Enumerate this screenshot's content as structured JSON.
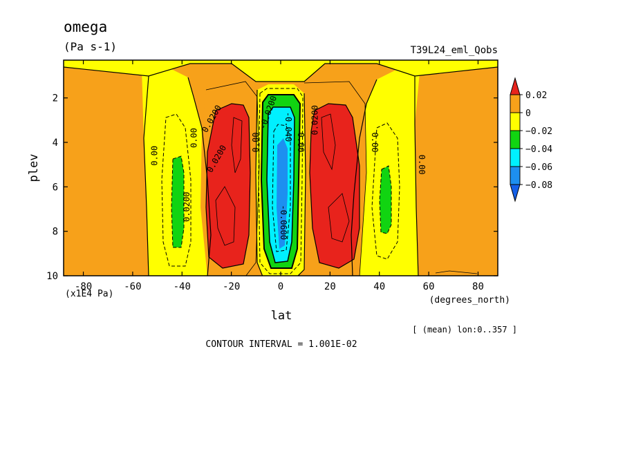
{
  "chart_data": {
    "type": "heatmap",
    "title": "omega",
    "units": "(Pa s-1)",
    "dataset": "T39L24_eml_Qobs",
    "xlabel": "lat",
    "xunits": "(degrees_north)",
    "ylabel": "plev",
    "yunits": "(x1E4 Pa)",
    "xlim": [
      -88,
      88
    ],
    "ylim": [
      10,
      0.3
    ],
    "x_ticks": [
      -80,
      -60,
      -40,
      -20,
      0,
      20,
      40,
      60,
      80
    ],
    "x_tick_labels": [
      "-80",
      "-60",
      "-40",
      "-20",
      "0",
      "20",
      "40",
      "60",
      "80"
    ],
    "y_ticks": [
      2,
      4,
      6,
      8,
      10
    ],
    "y_tick_labels": [
      "2",
      "4",
      "6",
      "8",
      "10"
    ],
    "levels": [
      0.02,
      0,
      -0.02,
      -0.04,
      -0.06,
      -0.08
    ],
    "colorbar": [
      {
        "label": "0.02",
        "color": "#e8231c"
      },
      {
        "label": "0",
        "color": "#f7a11a"
      },
      {
        "label": "−0.02",
        "color": "#ffff00"
      },
      {
        "label": "−0.04",
        "color": "#11d411"
      },
      {
        "label": "−0.06",
        "color": "#00f0ff"
      },
      {
        "label": "−0.08",
        "color": "#1d8ff0"
      }
    ],
    "below_color": "#1560e8",
    "contour_labels": [
      {
        "text": "0.00",
        "x": -50,
        "y": 4.6,
        "rot": -90
      },
      {
        "text": "0.00",
        "x": -34,
        "y": 3.8,
        "rot": -90
      },
      {
        "text": "0.0200",
        "x": -37,
        "y": 6.9,
        "rot": -90
      },
      {
        "text": "0.0200",
        "x": -27,
        "y": 3.0,
        "rot": -60
      },
      {
        "text": "0.0200",
        "x": -25,
        "y": 4.8,
        "rot": -60
      },
      {
        "text": "0.00",
        "x": -9,
        "y": 4.0,
        "rot": -90
      },
      {
        "text": "-0.0200",
        "x": -4,
        "y": 2.7,
        "rot": -70
      },
      {
        "text": "-0.040",
        "x": 2,
        "y": 3.3,
        "rot": 90
      },
      {
        "text": "-0.0600",
        "x": 0,
        "y": 7.6,
        "rot": 90
      },
      {
        "text": "0.00",
        "x": 7,
        "y": 4.0,
        "rot": 90
      },
      {
        "text": "0.0200",
        "x": 15,
        "y": 3.0,
        "rot": -90
      },
      {
        "text": "0.00",
        "x": 37,
        "y": 4.0,
        "rot": 90
      },
      {
        "text": "0.00",
        "x": 56,
        "y": 5.0,
        "rot": 90
      }
    ]
  },
  "footer": {
    "mean_note": "[ (mean) lon:0..357 ]",
    "contour_interval": "CONTOUR INTERVAL = 1.001E-02"
  }
}
